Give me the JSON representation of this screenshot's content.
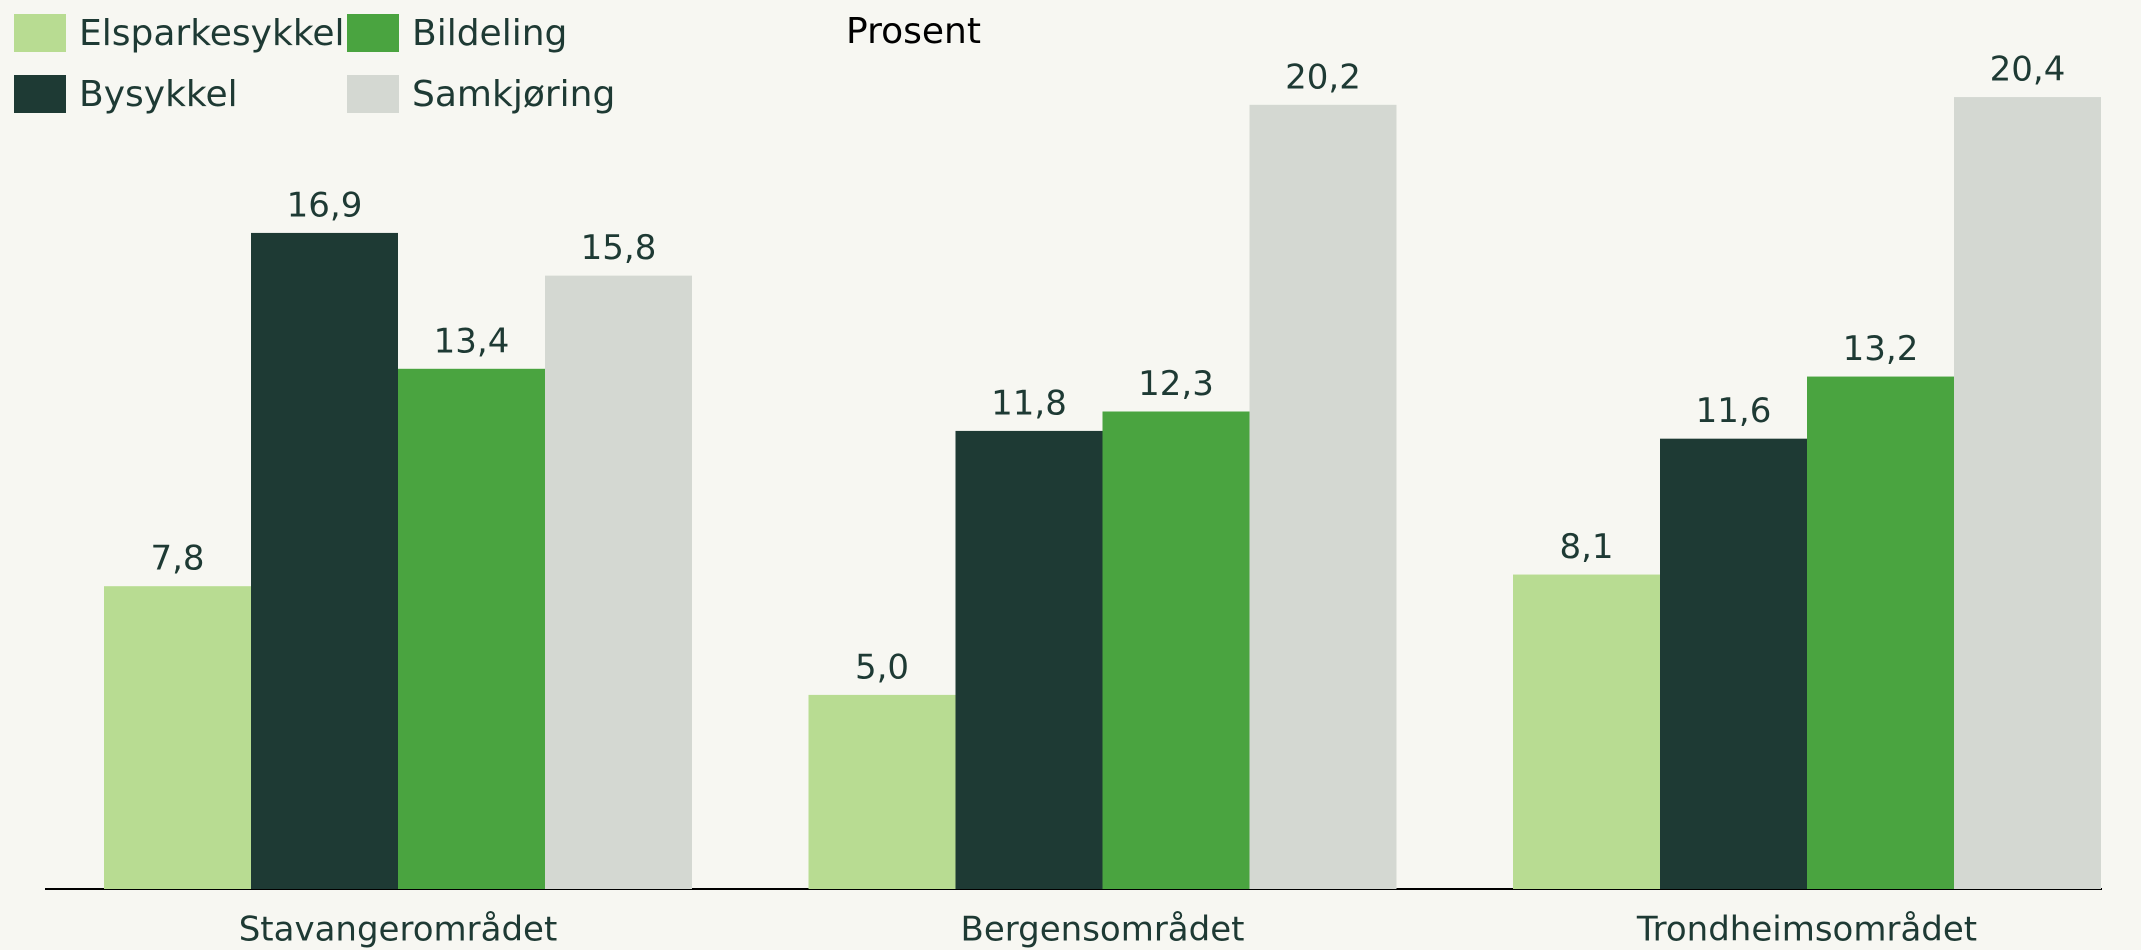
{
  "chart_data": {
    "type": "bar",
    "y_label": "Prosent",
    "categories": [
      "Stavangerområdet",
      "Bergensområdet",
      "Trondheimsområdet"
    ],
    "series": [
      {
        "name": "Elsparkesykkel",
        "color": "#b8dc92",
        "values": [
          7.8,
          5.0,
          8.1
        ],
        "value_labels": [
          "7,8",
          "5,0",
          "8,1"
        ]
      },
      {
        "name": "Bysykkel",
        "color": "#1e3a34",
        "values": [
          16.9,
          11.8,
          11.6
        ],
        "value_labels": [
          "16,9",
          "11,8",
          "11,6"
        ]
      },
      {
        "name": "Bildeling",
        "color": "#4aa440",
        "values": [
          13.4,
          12.3,
          13.2
        ],
        "value_labels": [
          "13,4",
          "12,3",
          "13,2"
        ]
      },
      {
        "name": "Samkjøring",
        "color": "#d4d8d2",
        "values": [
          15.8,
          20.2,
          20.4
        ],
        "value_labels": [
          "15,8",
          "20,2",
          "20,4"
        ]
      }
    ],
    "ylim": [
      0,
      22.9
    ],
    "legend": "top-left",
    "grid": false
  }
}
